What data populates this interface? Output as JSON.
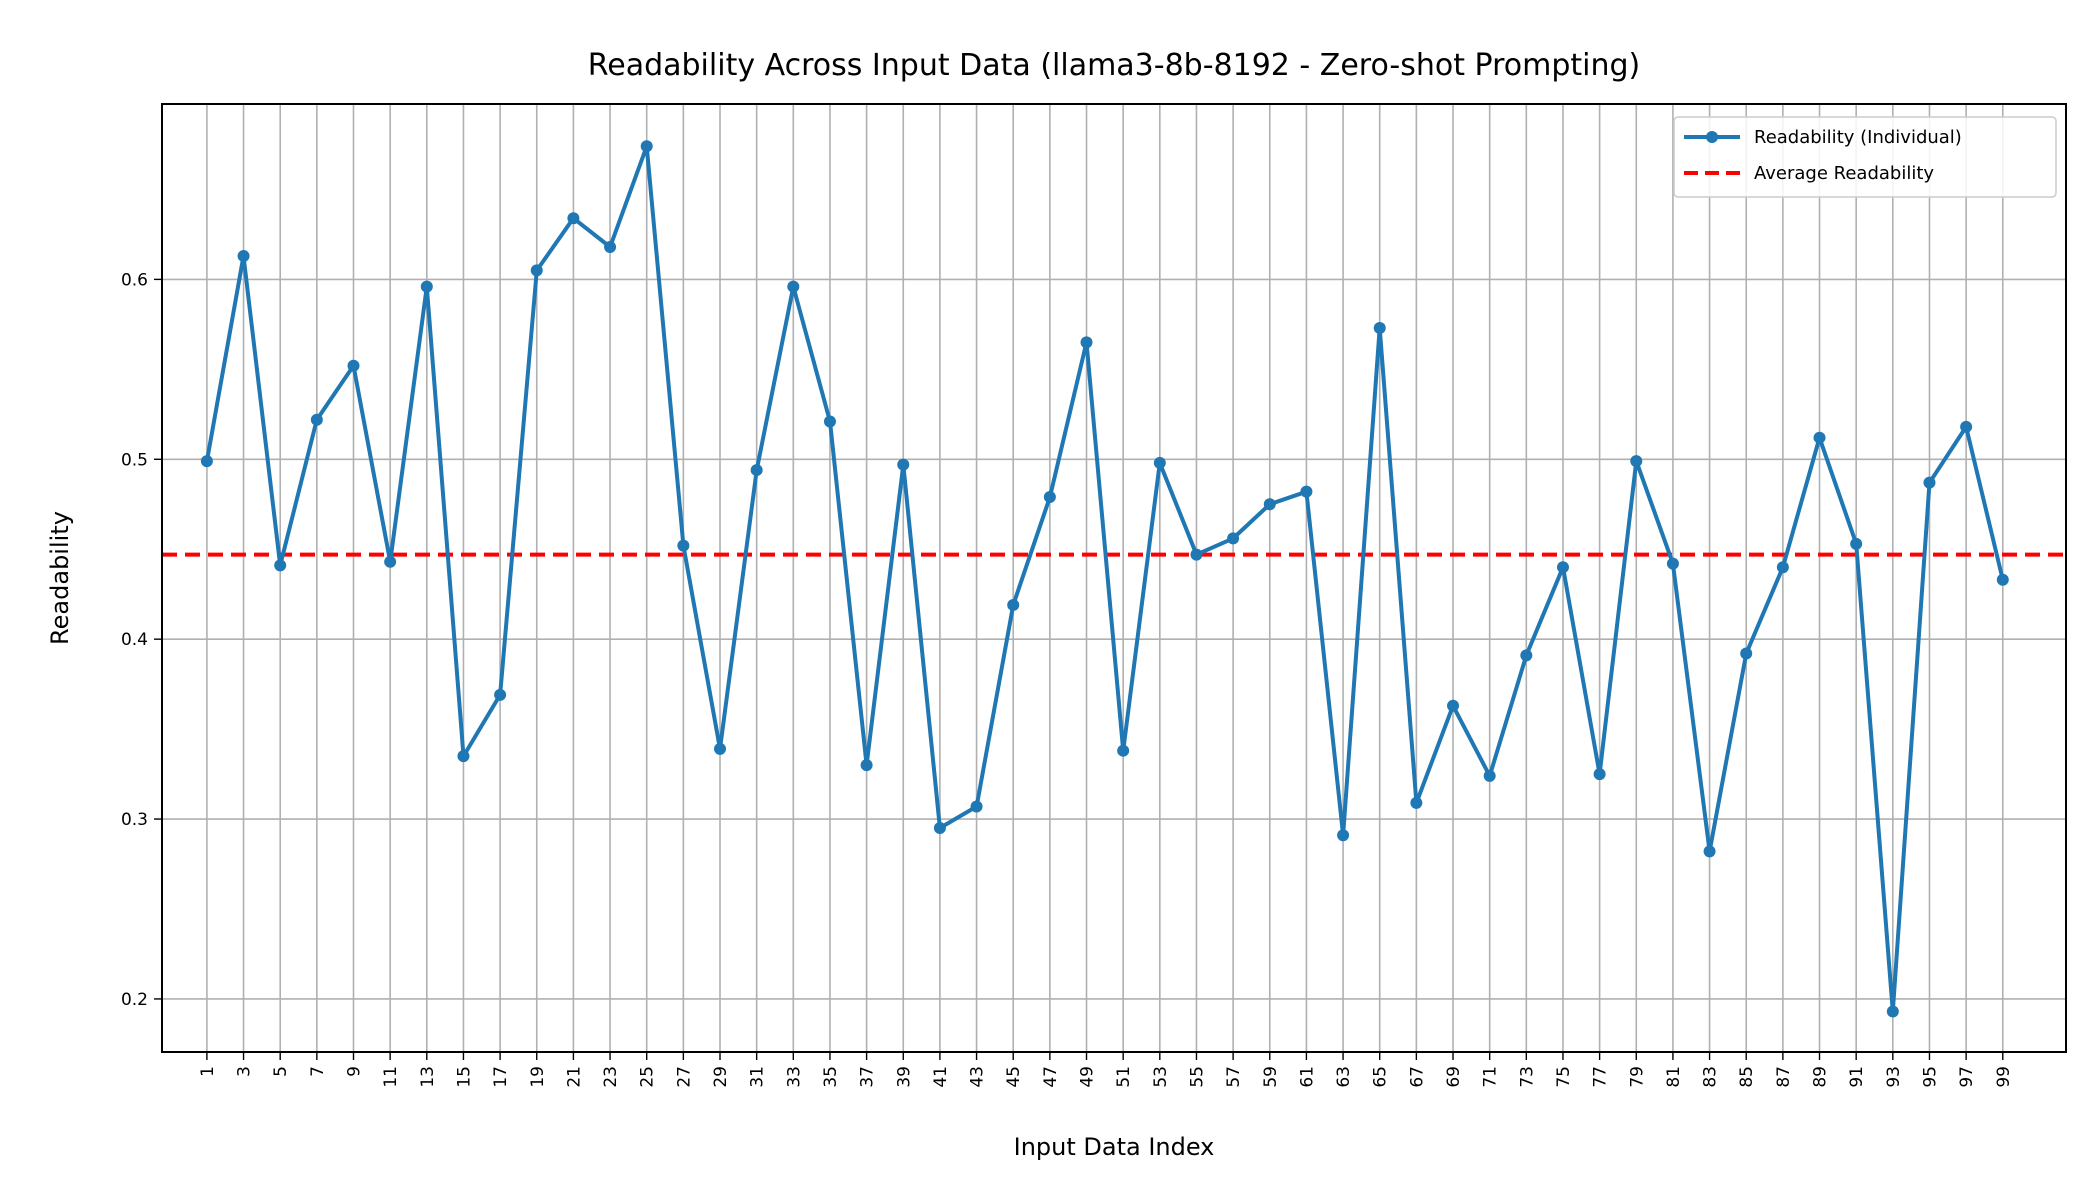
{
  "chart_data": {
    "type": "line",
    "title": "Readability Across Input Data (llama3-8b-8192 - Zero-shot Prompting)",
    "xlabel": "Input Data Index",
    "ylabel": "Readability",
    "xlim": [
      -1.45,
      102.45
    ],
    "ylim": [
      0.1705,
      0.6975
    ],
    "grid": true,
    "legend_position": "top-right",
    "x": [
      1,
      3,
      5,
      7,
      9,
      11,
      13,
      15,
      17,
      19,
      21,
      23,
      25,
      27,
      29,
      31,
      33,
      35,
      37,
      39,
      41,
      43,
      45,
      47,
      49,
      51,
      53,
      55,
      57,
      59,
      61,
      63,
      65,
      67,
      69,
      71,
      73,
      75,
      77,
      79,
      81,
      83,
      85,
      87,
      89,
      91,
      93,
      95,
      97,
      99
    ],
    "x_tick_labels": [
      "1",
      "3",
      "5",
      "7",
      "9",
      "11",
      "13",
      "15",
      "17",
      "19",
      "21",
      "23",
      "25",
      "27",
      "29",
      "31",
      "33",
      "35",
      "37",
      "39",
      "41",
      "43",
      "45",
      "47",
      "49",
      "51",
      "53",
      "55",
      "57",
      "59",
      "61",
      "63",
      "65",
      "67",
      "69",
      "71",
      "73",
      "75",
      "77",
      "79",
      "81",
      "83",
      "85",
      "87",
      "89",
      "91",
      "93",
      "95",
      "97",
      "99"
    ],
    "y_ticks": [
      0.2,
      0.3,
      0.4,
      0.5,
      0.6
    ],
    "y_tick_labels": [
      "0.2",
      "0.3",
      "0.4",
      "0.5",
      "0.6"
    ],
    "series": [
      {
        "name": "Readability (Individual)",
        "style": "solid-line-with-markers",
        "color": "#1f77b4",
        "values": [
          0.499,
          0.613,
          0.441,
          0.522,
          0.552,
          0.443,
          0.596,
          0.335,
          0.369,
          0.605,
          0.634,
          0.618,
          0.674,
          0.452,
          0.339,
          0.494,
          0.596,
          0.521,
          0.33,
          0.497,
          0.295,
          0.307,
          0.419,
          0.479,
          0.565,
          0.338,
          0.498,
          0.447,
          0.456,
          0.475,
          0.482,
          0.291,
          0.573,
          0.309,
          0.363,
          0.324,
          0.391,
          0.44,
          0.325,
          0.499,
          0.442,
          0.282,
          0.392,
          0.44,
          0.512,
          0.453,
          0.193,
          0.487,
          0.518,
          0.433
        ]
      },
      {
        "name": "Average Readability",
        "style": "dashed-horizontal-line",
        "color": "#ff0000",
        "value": 0.447
      }
    ]
  }
}
